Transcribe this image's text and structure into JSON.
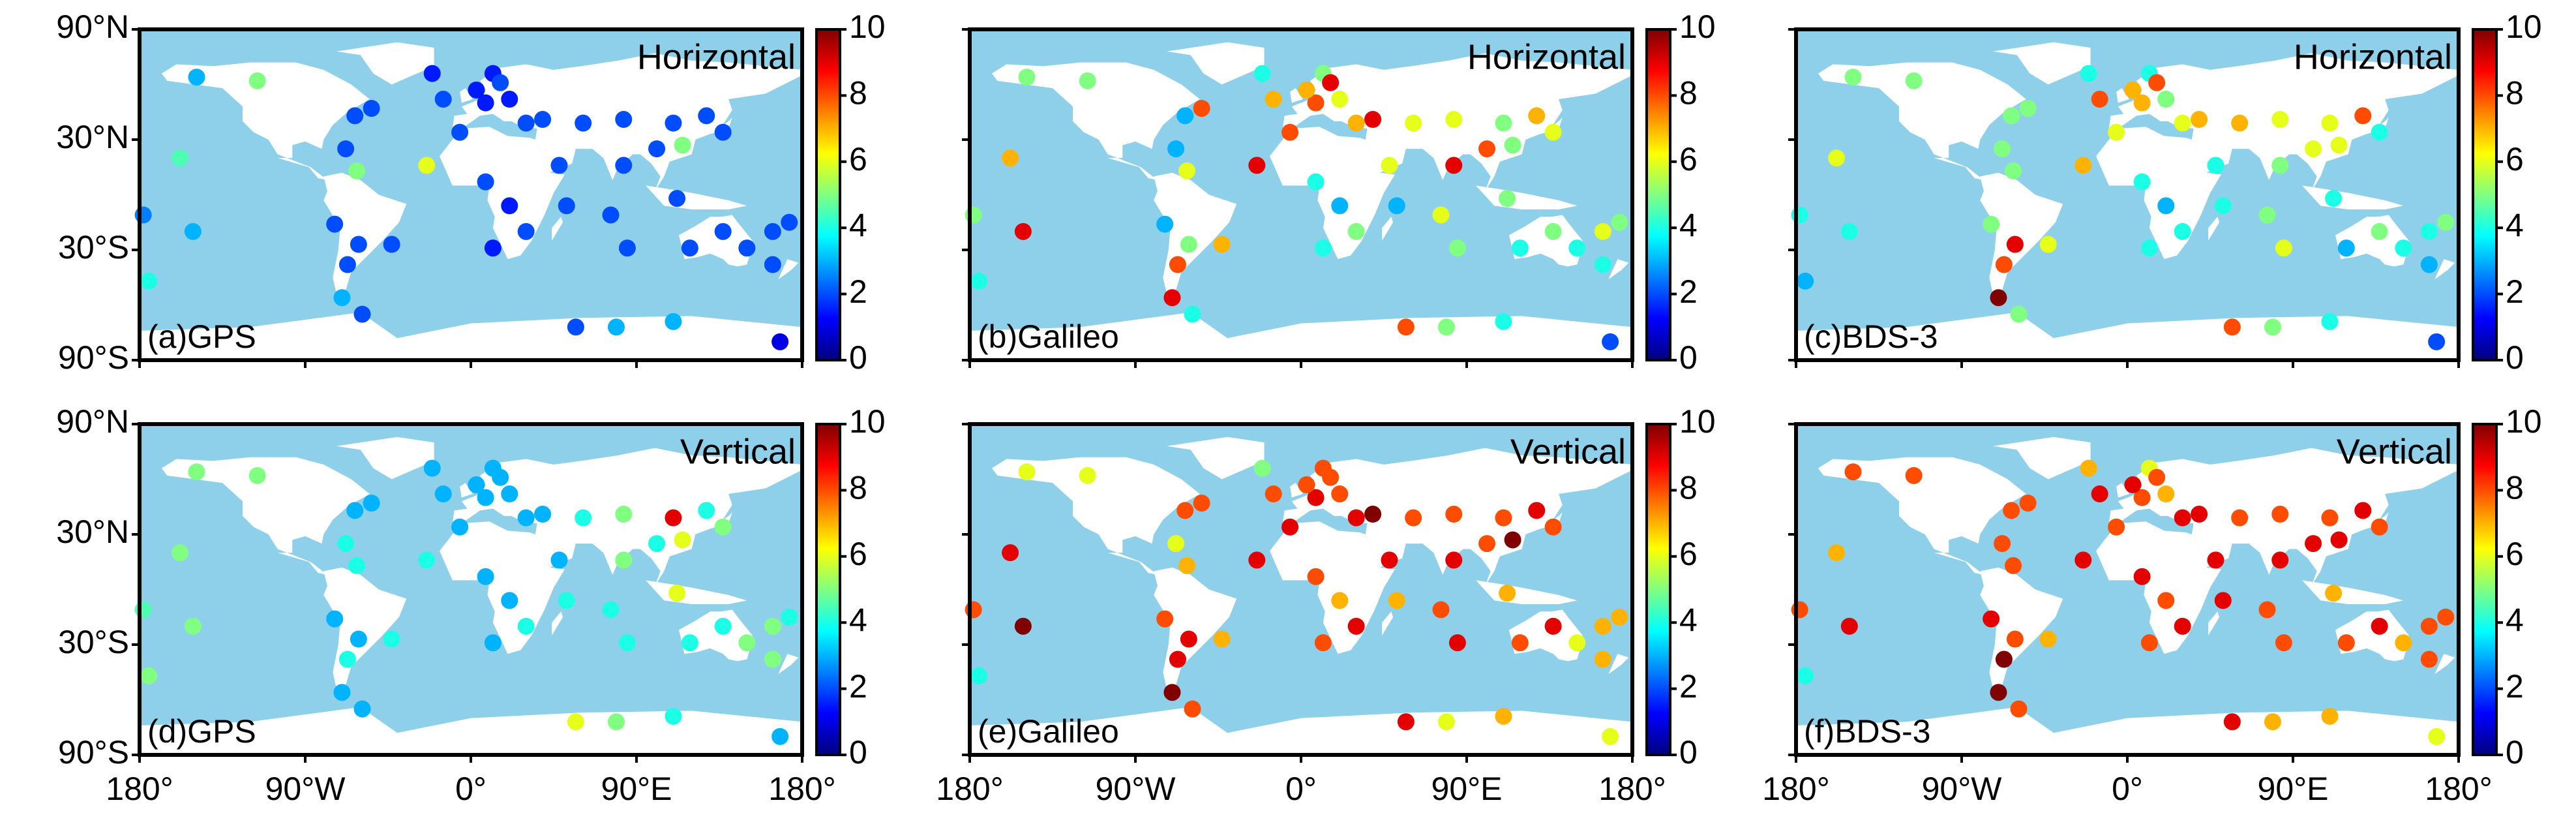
{
  "chart_data": [
    {
      "type": "scatter",
      "label": "(a)GPS",
      "annotation": "Horizontal",
      "colormap": "jet",
      "clim": [
        0,
        10
      ],
      "cticks": [
        0,
        2,
        4,
        6,
        8,
        10
      ],
      "xlim": [
        -180,
        180
      ],
      "ylim": [
        -90,
        90
      ],
      "xticks": [
        -180,
        -90,
        0,
        90,
        180
      ],
      "yticks": [
        {
          "value": -90,
          "label": "90°S"
        },
        {
          "value": -30,
          "label": "30°S"
        },
        {
          "value": 30,
          "label": "30°N"
        },
        {
          "value": 90,
          "label": "90°N"
        }
      ],
      "x": [
        -149,
        -116,
        -158,
        -151,
        -178,
        -175,
        -63,
        -54,
        -68,
        -62,
        -24,
        -74,
        -67,
        -61,
        -43,
        -70,
        -59,
        -21,
        -15,
        -6,
        12,
        21,
        8,
        30,
        39,
        61,
        83,
        110,
        137,
        128,
        101,
        115,
        83,
        48,
        8,
        21,
        30,
        12,
        52,
        76,
        85,
        112,
        119,
        137,
        150,
        164,
        173,
        164,
        57,
        79,
        168,
        110,
        3,
        16
      ],
      "y": [
        64,
        62,
        20,
        -20,
        -11,
        -47,
        43,
        47,
        25,
        13,
        16,
        -16,
        -38,
        -27,
        -27,
        -56,
        -65,
        66,
        52,
        34,
        66,
        52,
        50,
        39,
        41,
        39,
        41,
        39,
        34,
        43,
        25,
        27,
        16,
        16,
        7,
        -6,
        -20,
        -29,
        -6,
        -11,
        -29,
        -2,
        -29,
        -20,
        -29,
        -20,
        -15,
        -38,
        -72,
        -72,
        -80,
        -69,
        57,
        61
      ],
      "values": [
        3,
        5,
        4.5,
        3,
        2.5,
        4,
        2,
        2,
        2,
        5,
        6,
        2,
        2,
        2,
        2,
        3,
        2,
        1.5,
        2,
        2,
        1.5,
        1.5,
        1.5,
        2,
        2,
        2,
        2,
        2,
        2,
        2,
        2,
        5,
        2,
        2,
        2,
        1.5,
        2,
        1.5,
        2,
        2,
        2,
        2,
        2,
        2,
        2,
        2,
        2,
        2,
        2,
        3,
        1,
        3,
        1.5,
        2
      ]
    },
    {
      "type": "scatter",
      "label": "(b)Galileo",
      "annotation": "Horizontal",
      "colormap": "jet",
      "clim": [
        0,
        10
      ],
      "cticks": [
        0,
        2,
        4,
        6,
        8,
        10
      ],
      "xlim": [
        -180,
        180
      ],
      "ylim": [
        -90,
        90
      ],
      "xticks": [
        -180,
        -90,
        0,
        90,
        180
      ],
      "yticks": [
        -90,
        -30,
        30,
        90
      ],
      "x": [
        -149,
        -116,
        -158,
        -151,
        -178,
        -175,
        -63,
        -54,
        -68,
        -62,
        -24,
        -74,
        -67,
        -61,
        -43,
        -70,
        -59,
        -21,
        -15,
        -6,
        12,
        21,
        8,
        30,
        39,
        61,
        83,
        110,
        137,
        128,
        101,
        115,
        83,
        48,
        8,
        21,
        30,
        12,
        52,
        76,
        85,
        112,
        119,
        137,
        150,
        164,
        173,
        164,
        57,
        79,
        168,
        110,
        3,
        16
      ],
      "y": [
        64,
        62,
        20,
        -20,
        -11,
        -47,
        43,
        47,
        25,
        13,
        16,
        -16,
        -38,
        -27,
        -27,
        -56,
        -65,
        66,
        52,
        34,
        66,
        52,
        50,
        39,
        41,
        39,
        41,
        39,
        34,
        43,
        25,
        27,
        16,
        16,
        7,
        -6,
        -20,
        -29,
        -6,
        -11,
        -29,
        -2,
        -29,
        -20,
        -29,
        -20,
        -15,
        -38,
        -72,
        -72,
        -80,
        -69,
        57,
        61
      ],
      "values": [
        5,
        5,
        7,
        9,
        5,
        4,
        3,
        8,
        3,
        6,
        9,
        3,
        8,
        5,
        7,
        9,
        4,
        4,
        7,
        8,
        5,
        6,
        8,
        7,
        9,
        6,
        6,
        5,
        6,
        7,
        8,
        5,
        9,
        6,
        4,
        3,
        5,
        4,
        3,
        6,
        5,
        5,
        4,
        5,
        4,
        6,
        5,
        4,
        8,
        5,
        2,
        4,
        7,
        9
      ]
    },
    {
      "type": "scatter",
      "label": "(c)BDS-3",
      "annotation": "Horizontal",
      "colormap": "jet",
      "clim": [
        0,
        10
      ],
      "cticks": [
        0,
        2,
        4,
        6,
        8,
        10
      ],
      "xlim": [
        -180,
        180
      ],
      "ylim": [
        -90,
        90
      ],
      "xticks": [
        -180,
        -90,
        0,
        90,
        180
      ],
      "yticks": [
        -90,
        -30,
        30,
        90
      ],
      "x": [
        -149,
        -116,
        -158,
        -151,
        -178,
        -175,
        -63,
        -54,
        -68,
        -62,
        -24,
        -74,
        -67,
        -61,
        -43,
        -70,
        -59,
        -21,
        -15,
        -6,
        12,
        21,
        8,
        30,
        39,
        61,
        83,
        110,
        137,
        128,
        101,
        115,
        83,
        48,
        8,
        21,
        30,
        12,
        52,
        76,
        85,
        112,
        119,
        137,
        150,
        164,
        173,
        164,
        57,
        79,
        168,
        110,
        3,
        16
      ],
      "y": [
        64,
        62,
        20,
        -20,
        -11,
        -47,
        43,
        47,
        25,
        13,
        16,
        -16,
        -38,
        -27,
        -27,
        -56,
        -65,
        66,
        52,
        34,
        66,
        52,
        50,
        39,
        41,
        39,
        41,
        39,
        34,
        43,
        25,
        27,
        16,
        16,
        7,
        -6,
        -20,
        -29,
        -6,
        -11,
        -29,
        -2,
        -29,
        -20,
        -29,
        -20,
        -15,
        -38,
        -72,
        -72,
        -80,
        -69,
        57,
        61
      ],
      "values": [
        5,
        5,
        6,
        4,
        4,
        3,
        5,
        5,
        5,
        5,
        7,
        5,
        8,
        9,
        6,
        10,
        5,
        4,
        8,
        6,
        4,
        5,
        7,
        6,
        7,
        7,
        6,
        6,
        4,
        8,
        6,
        6,
        5,
        4,
        4,
        3,
        4,
        4,
        4,
        5,
        6,
        4,
        3,
        5,
        4,
        4,
        5,
        3,
        8,
        5,
        2,
        4,
        7,
        8
      ]
    },
    {
      "type": "scatter",
      "label": "(d)GPS",
      "annotation": "Vertical",
      "colormap": "jet",
      "clim": [
        0,
        10
      ],
      "cticks": [
        0,
        2,
        4,
        6,
        8,
        10
      ],
      "xlim": [
        -180,
        180
      ],
      "ylim": [
        -90,
        90
      ],
      "xticks": [
        {
          "value": -180,
          "label": "180°"
        },
        {
          "value": -90,
          "label": "90°W"
        },
        {
          "value": 0,
          "label": "0°"
        },
        {
          "value": 90,
          "label": "90°E"
        },
        {
          "value": 180,
          "label": "180°"
        }
      ],
      "yticks": [
        {
          "value": -90,
          "label": "90°S"
        },
        {
          "value": -30,
          "label": "30°S"
        },
        {
          "value": 30,
          "label": "30°N"
        },
        {
          "value": 90,
          "label": "90°N"
        }
      ],
      "x": [
        -149,
        -116,
        -158,
        -151,
        -178,
        -175,
        -63,
        -54,
        -68,
        -62,
        -24,
        -74,
        -67,
        -61,
        -43,
        -70,
        -59,
        -21,
        -15,
        -6,
        12,
        21,
        8,
        30,
        39,
        61,
        83,
        110,
        137,
        128,
        101,
        115,
        83,
        48,
        8,
        21,
        30,
        12,
        52,
        76,
        85,
        112,
        119,
        137,
        150,
        164,
        173,
        164,
        57,
        79,
        168,
        110,
        3,
        16
      ],
      "y": [
        64,
        62,
        20,
        -20,
        -11,
        -47,
        43,
        47,
        25,
        13,
        16,
        -16,
        -38,
        -27,
        -27,
        -56,
        -65,
        66,
        52,
        34,
        66,
        52,
        50,
        39,
        41,
        39,
        41,
        39,
        34,
        43,
        25,
        27,
        16,
        16,
        7,
        -6,
        -20,
        -29,
        -6,
        -11,
        -29,
        -2,
        -29,
        -20,
        -29,
        -20,
        -15,
        -38,
        -72,
        -72,
        -80,
        -69,
        57,
        61
      ],
      "values": [
        5,
        5,
        5,
        5,
        4.5,
        5,
        3,
        3,
        4,
        4,
        4,
        3,
        4,
        3,
        4,
        3,
        3,
        3,
        3,
        3,
        3,
        3,
        3,
        3,
        3,
        4,
        5,
        9,
        5,
        4,
        4,
        6,
        5,
        3,
        3,
        3,
        4,
        3,
        4,
        4,
        4,
        6,
        4,
        4,
        5,
        5,
        4,
        5,
        6,
        5,
        3,
        4,
        3,
        3
      ]
    },
    {
      "type": "scatter",
      "label": "(e)Galileo",
      "annotation": "Vertical",
      "colormap": "jet",
      "clim": [
        0,
        10
      ],
      "cticks": [
        0,
        2,
        4,
        6,
        8,
        10
      ],
      "xlim": [
        -180,
        180
      ],
      "ylim": [
        -90,
        90
      ],
      "xticks": [
        {
          "value": -180,
          "label": "180°"
        },
        {
          "value": -90,
          "label": "90°W"
        },
        {
          "value": 0,
          "label": "0°"
        },
        {
          "value": 90,
          "label": "90°E"
        },
        {
          "value": 180,
          "label": "180°"
        }
      ],
      "yticks": [
        -90,
        -30,
        30,
        90
      ],
      "x": [
        -149,
        -116,
        -158,
        -151,
        -178,
        -175,
        -63,
        -54,
        -68,
        -62,
        -24,
        -74,
        -67,
        -61,
        -43,
        -70,
        -59,
        -21,
        -15,
        -6,
        12,
        21,
        8,
        30,
        39,
        61,
        83,
        110,
        137,
        128,
        101,
        115,
        83,
        48,
        8,
        21,
        30,
        12,
        52,
        76,
        85,
        112,
        119,
        137,
        150,
        164,
        173,
        164,
        57,
        79,
        168,
        110,
        3,
        16
      ],
      "y": [
        64,
        62,
        20,
        -20,
        -11,
        -47,
        43,
        47,
        25,
        13,
        16,
        -16,
        -38,
        -27,
        -27,
        -56,
        -65,
        66,
        52,
        34,
        66,
        52,
        50,
        39,
        41,
        39,
        41,
        39,
        34,
        43,
        25,
        27,
        16,
        16,
        7,
        -6,
        -20,
        -29,
        -6,
        -11,
        -29,
        -2,
        -29,
        -20,
        -29,
        -20,
        -15,
        -38,
        -72,
        -72,
        -80,
        -69,
        57,
        61
      ],
      "values": [
        6,
        6,
        9,
        10,
        8,
        4,
        8,
        8,
        6,
        7,
        9,
        8,
        9,
        9,
        7,
        10,
        8,
        5,
        8,
        9,
        8,
        8,
        9,
        9,
        10,
        8,
        8,
        8,
        8,
        9,
        8,
        10,
        9,
        9,
        8,
        7,
        9,
        8,
        7,
        8,
        9,
        7,
        8,
        9,
        6,
        7,
        7,
        7,
        9,
        6,
        6,
        7,
        8,
        8
      ]
    },
    {
      "type": "scatter",
      "label": "(f)BDS-3",
      "annotation": "Vertical",
      "colormap": "jet",
      "clim": [
        0,
        10
      ],
      "cticks": [
        0,
        2,
        4,
        6,
        8,
        10
      ],
      "xlim": [
        -180,
        180
      ],
      "ylim": [
        -90,
        90
      ],
      "xticks": [
        {
          "value": -180,
          "label": "180°"
        },
        {
          "value": -90,
          "label": "90°W"
        },
        {
          "value": 0,
          "label": "0°"
        },
        {
          "value": 90,
          "label": "90°E"
        },
        {
          "value": 180,
          "label": "180°"
        }
      ],
      "yticks": [
        -90,
        -30,
        30,
        90
      ],
      "x": [
        -149,
        -116,
        -158,
        -151,
        -178,
        -175,
        -63,
        -54,
        -68,
        -62,
        -24,
        -74,
        -67,
        -61,
        -43,
        -70,
        -59,
        -21,
        -15,
        -6,
        12,
        21,
        8,
        30,
        39,
        61,
        83,
        110,
        137,
        128,
        101,
        115,
        83,
        48,
        8,
        21,
        30,
        12,
        52,
        76,
        85,
        112,
        119,
        137,
        150,
        164,
        173,
        164,
        57,
        79,
        168,
        110,
        3,
        16
      ],
      "y": [
        64,
        62,
        20,
        -20,
        -11,
        -47,
        43,
        47,
        25,
        13,
        16,
        -16,
        -38,
        -27,
        -27,
        -56,
        -65,
        66,
        52,
        34,
        66,
        52,
        50,
        39,
        41,
        39,
        41,
        39,
        34,
        43,
        25,
        27,
        16,
        16,
        7,
        -6,
        -20,
        -29,
        -6,
        -11,
        -29,
        -2,
        -29,
        -20,
        -29,
        -20,
        -15,
        -38,
        -72,
        -72,
        -80,
        -69,
        57,
        61
      ],
      "values": [
        8,
        8,
        7,
        9,
        8,
        4,
        8,
        8,
        8,
        8,
        9,
        9,
        10,
        8,
        7,
        10,
        8,
        7,
        9,
        8,
        6,
        7,
        8,
        9,
        9,
        8,
        8,
        8,
        8,
        9,
        9,
        9,
        9,
        9,
        9,
        8,
        9,
        8,
        9,
        8,
        8,
        7,
        8,
        9,
        7,
        8,
        8,
        8,
        9,
        7,
        6,
        7,
        9,
        8
      ]
    }
  ]
}
